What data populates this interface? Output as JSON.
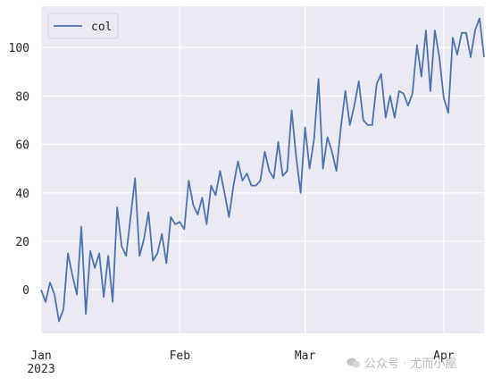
{
  "chart_data": {
    "type": "line",
    "title": "",
    "xlabel": "",
    "ylabel": "",
    "x_ticks": [
      {
        "date": "2023-01-01",
        "label": "Jan",
        "sublabel": "2023"
      },
      {
        "date": "2023-02-01",
        "label": "Feb",
        "sublabel": ""
      },
      {
        "date": "2023-03-01",
        "label": "Mar",
        "sublabel": ""
      },
      {
        "date": "2023-04-01",
        "label": "Apr",
        "sublabel": ""
      }
    ],
    "y_ticks": [
      0,
      20,
      40,
      60,
      80,
      100
    ],
    "xlim": [
      "2023-01-01",
      "2023-04-10"
    ],
    "ylim": [
      -18,
      117
    ],
    "grid": true,
    "legend_position": "top-left",
    "colors": {
      "series": "#4c72b0",
      "plot_bg": "#eaeaf2",
      "grid": "#ffffff"
    },
    "series": [
      {
        "name": "col",
        "x_start": "2023-01-01",
        "x_step": "1 day",
        "values": [
          0,
          -5,
          3,
          -2,
          -13,
          -8,
          15,
          6,
          -2,
          26,
          -10,
          16,
          9,
          15,
          -3,
          14,
          -5,
          34,
          18,
          14,
          30,
          46,
          14,
          21,
          32,
          12,
          15,
          23,
          11,
          30,
          27,
          28,
          25,
          45,
          35,
          31,
          38,
          27,
          43,
          39,
          49,
          40,
          30,
          43,
          53,
          45,
          48,
          43,
          43,
          45,
          57,
          49,
          46,
          61,
          47,
          49,
          74,
          55,
          40,
          67,
          50,
          62,
          87,
          50,
          63,
          57,
          49,
          67,
          82,
          68,
          76,
          86,
          70,
          68,
          68,
          85,
          89,
          71,
          80,
          71,
          82,
          81,
          76,
          81,
          101,
          88,
          107,
          82,
          107,
          96,
          79,
          73,
          104,
          97,
          106,
          106,
          96,
          107,
          112,
          96
        ]
      }
    ]
  },
  "watermark": {
    "text": "公众号 · 尤而小屋",
    "icon": "wechat-icon"
  }
}
